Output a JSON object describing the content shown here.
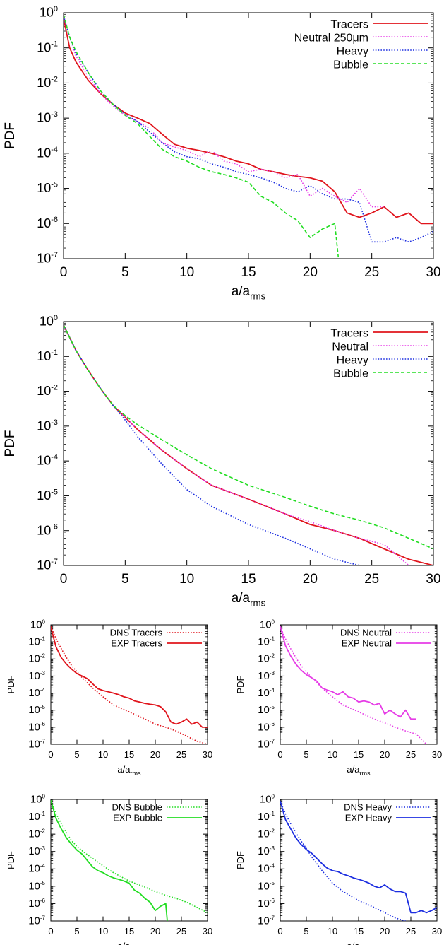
{
  "colors": {
    "tracers": "#e0141c",
    "neutral": "#e63ce6",
    "heavy": "#1c2ee0",
    "bubble": "#22dd22"
  },
  "chart_data": [
    {
      "type": "line",
      "y_scale": "log",
      "xlabel": "a/a",
      "xlabel_sub": "rms",
      "ylabel": "PDF",
      "xlim": [
        0,
        30
      ],
      "ylim": [
        1e-07,
        1
      ],
      "x_ticks": [
        "0",
        "5",
        "10",
        "15",
        "20",
        "25",
        "30"
      ],
      "y_ticks": [
        "10^0",
        "10^-1",
        "10^-2",
        "10^-3",
        "10^-4",
        "10^-5",
        "10^-6",
        "10^-7"
      ],
      "legend_position": "top-right",
      "series": [
        {
          "name": "Tracers",
          "color": "tracers",
          "style": "solid",
          "x": [
            0,
            0.5,
            1,
            2,
            3,
            4,
            5,
            6,
            7,
            8,
            9,
            10,
            11,
            12,
            13,
            14,
            15,
            16,
            17,
            18,
            19,
            20,
            21,
            22,
            23,
            24,
            25,
            26,
            27,
            28,
            29,
            30
          ],
          "y": [
            0.7,
            0.1,
            0.04,
            0.012,
            0.005,
            0.0025,
            0.0014,
            0.001,
            0.0007,
            0.00035,
            0.00018,
            0.00014,
            0.00012,
            0.0001,
            8e-05,
            6e-05,
            5e-05,
            3.5e-05,
            3e-05,
            2.5e-05,
            2.2e-05,
            2e-05,
            1.6e-05,
            8e-06,
            2e-06,
            1.5e-06,
            2e-06,
            3e-06,
            1.5e-06,
            2e-06,
            1e-06,
            1e-06
          ]
        },
        {
          "name": "Neutral 250μm",
          "color": "neutral",
          "style": "dotted",
          "x": [
            0,
            0.5,
            1,
            2,
            3,
            4,
            5,
            6,
            7,
            8,
            9,
            10,
            11,
            12,
            13,
            14,
            15,
            16,
            17,
            18,
            19,
            20,
            21,
            22,
            23,
            24,
            25,
            26
          ],
          "y": [
            0.8,
            0.2,
            0.06,
            0.015,
            0.005,
            0.0022,
            0.0012,
            0.0008,
            0.0005,
            0.0002,
            0.00015,
            0.00012,
            8e-05,
            0.00012,
            6e-05,
            5e-05,
            3e-05,
            3.5e-05,
            3e-05,
            2e-05,
            2.5e-05,
            6e-06,
            1e-05,
            6e-06,
            4e-06,
            1e-05,
            3e-06,
            3e-06
          ]
        },
        {
          "name": "Heavy",
          "color": "heavy",
          "style": "dotted",
          "x": [
            0,
            0.5,
            1,
            2,
            3,
            4,
            5,
            6,
            7,
            8,
            9,
            10,
            11,
            12,
            13,
            14,
            15,
            16,
            17,
            18,
            19,
            20,
            21,
            22,
            23,
            24,
            25,
            26,
            27,
            28,
            29,
            30
          ],
          "y": [
            0.8,
            0.2,
            0.07,
            0.02,
            0.006,
            0.0025,
            0.0013,
            0.0008,
            0.0004,
            0.0002,
            0.00011,
            8e-05,
            7e-05,
            5e-05,
            4e-05,
            3e-05,
            2.5e-05,
            2e-05,
            1.5e-05,
            1e-05,
            8e-06,
            1.2e-05,
            7e-06,
            5e-06,
            5e-06,
            4e-06,
            3e-07,
            3e-07,
            4e-07,
            3e-07,
            4e-07,
            6e-07
          ]
        },
        {
          "name": "Bubble",
          "color": "bubble",
          "style": "dashed",
          "x": [
            0,
            0.5,
            1,
            2,
            3,
            4,
            5,
            6,
            7,
            8,
            9,
            10,
            11,
            12,
            13,
            14,
            15,
            16,
            17,
            18,
            19,
            20,
            21,
            22,
            22.3
          ],
          "y": [
            0.9,
            0.2,
            0.08,
            0.02,
            0.006,
            0.0025,
            0.0012,
            0.0007,
            0.0003,
            0.00013,
            8e-05,
            6e-05,
            4e-05,
            3e-05,
            2.5e-05,
            2e-05,
            1.5e-05,
            6e-06,
            4e-06,
            2e-06,
            1.2e-06,
            4e-07,
            7e-07,
            1e-06,
            1e-07
          ]
        }
      ]
    },
    {
      "type": "line",
      "y_scale": "log",
      "xlabel": "a/a",
      "xlabel_sub": "rms",
      "ylabel": "PDF",
      "xlim": [
        0,
        30
      ],
      "ylim": [
        1e-07,
        1
      ],
      "x_ticks": [
        "0",
        "5",
        "10",
        "15",
        "20",
        "25",
        "30"
      ],
      "y_ticks": [
        "10^0",
        "10^-1",
        "10^-2",
        "10^-3",
        "10^-4",
        "10^-5",
        "10^-6",
        "10^-7"
      ],
      "legend_position": "top-right",
      "series": [
        {
          "name": "Tracers",
          "color": "tracers",
          "style": "solid",
          "x": [
            0,
            1,
            2,
            3,
            4,
            5,
            6,
            8,
            10,
            12,
            15,
            18,
            20,
            22,
            24,
            26,
            28,
            30
          ],
          "y": [
            0.8,
            0.15,
            0.04,
            0.012,
            0.004,
            0.0018,
            0.0008,
            0.0002,
            6e-05,
            2e-05,
            8e-06,
            3e-06,
            1.5e-06,
            1e-06,
            6e-07,
            3e-07,
            1.5e-07,
            1e-07
          ]
        },
        {
          "name": "Neutral",
          "color": "neutral",
          "style": "dotted",
          "x": [
            0,
            1,
            2,
            3,
            4,
            5,
            6,
            8,
            10,
            12,
            15,
            18,
            20,
            22,
            24,
            26,
            28
          ],
          "y": [
            0.8,
            0.15,
            0.04,
            0.012,
            0.004,
            0.0018,
            0.0008,
            0.0002,
            6e-05,
            2e-05,
            8e-06,
            3e-06,
            1.8e-06,
            1e-06,
            6e-07,
            4e-07,
            1e-07
          ]
        },
        {
          "name": "Heavy",
          "color": "heavy",
          "style": "dotted",
          "x": [
            0,
            1,
            2,
            3,
            4,
            5,
            6,
            8,
            10,
            12,
            15,
            18,
            20,
            22,
            24
          ],
          "y": [
            0.8,
            0.15,
            0.04,
            0.012,
            0.004,
            0.0015,
            0.0005,
            8e-05,
            1.5e-05,
            5e-06,
            1.5e-06,
            6e-07,
            3e-07,
            1.5e-07,
            1e-07
          ]
        },
        {
          "name": "Bubble",
          "color": "bubble",
          "style": "dashed",
          "x": [
            0,
            1,
            2,
            3,
            4,
            5,
            6,
            8,
            10,
            12,
            15,
            18,
            20,
            22,
            24,
            26,
            28,
            30
          ],
          "y": [
            0.8,
            0.15,
            0.04,
            0.012,
            0.004,
            0.002,
            0.0011,
            0.0004,
            0.00015,
            6e-05,
            2e-05,
            9e-06,
            5e-06,
            3e-06,
            2e-06,
            1.2e-06,
            6e-07,
            3e-07
          ]
        }
      ]
    },
    {
      "type": "line",
      "y_scale": "log",
      "xlabel": "a/a",
      "xlabel_sub": "rms",
      "ylabel": "PDF",
      "xlim": [
        0,
        30
      ],
      "ylim": [
        1e-07,
        1
      ],
      "x_ticks": [
        "0",
        "5",
        "10",
        "15",
        "20",
        "25",
        "30"
      ],
      "y_ticks": [
        "10^0",
        "10^-1",
        "10^-2",
        "10^-3",
        "10^-4",
        "10^-5",
        "10^-6",
        "10^-7"
      ],
      "legend_position": "top-right",
      "series": [
        {
          "name": "DNS Tracers",
          "color": "tracers",
          "style": "dotted",
          "x": [
            0,
            1,
            2,
            3,
            4,
            5,
            6,
            8,
            10,
            12,
            15,
            18,
            20,
            22,
            24,
            26,
            28,
            30
          ],
          "y": [
            0.8,
            0.15,
            0.04,
            0.012,
            0.004,
            0.0018,
            0.0008,
            0.0002,
            6e-05,
            2e-05,
            8e-06,
            3e-06,
            1.5e-06,
            1e-06,
            6e-07,
            3e-07,
            1.5e-07,
            1e-07
          ]
        },
        {
          "name": "EXP Tracers",
          "color": "tracers",
          "style": "solid",
          "x": [
            0,
            1,
            2,
            3,
            4,
            5,
            6,
            7,
            8,
            9,
            10,
            11,
            12,
            13,
            14,
            15,
            16,
            17,
            18,
            19,
            20,
            21,
            22,
            23,
            24,
            25,
            26,
            27,
            28,
            29,
            30
          ],
          "y": [
            0.7,
            0.05,
            0.012,
            0.005,
            0.0025,
            0.0014,
            0.001,
            0.0007,
            0.00035,
            0.00018,
            0.00014,
            0.00012,
            0.0001,
            8e-05,
            6e-05,
            5e-05,
            3.5e-05,
            3e-05,
            2.5e-05,
            2.2e-05,
            2e-05,
            1.6e-05,
            8e-06,
            2e-06,
            1.5e-06,
            2e-06,
            3e-06,
            1.5e-06,
            2e-06,
            1e-06,
            1e-06
          ]
        }
      ]
    },
    {
      "type": "line",
      "y_scale": "log",
      "xlabel": "a/a",
      "xlabel_sub": "rms",
      "ylabel": "PDF",
      "xlim": [
        0,
        30
      ],
      "ylim": [
        1e-07,
        1
      ],
      "x_ticks": [
        "0",
        "5",
        "10",
        "15",
        "20",
        "25",
        "30"
      ],
      "y_ticks": [
        "10^0",
        "10^-1",
        "10^-2",
        "10^-3",
        "10^-4",
        "10^-5",
        "10^-6",
        "10^-7"
      ],
      "legend_position": "top-right",
      "series": [
        {
          "name": "DNS Neutral",
          "color": "neutral",
          "style": "dotted",
          "x": [
            0,
            1,
            2,
            3,
            4,
            5,
            6,
            8,
            10,
            12,
            15,
            18,
            20,
            22,
            24,
            26,
            28
          ],
          "y": [
            0.8,
            0.15,
            0.04,
            0.012,
            0.004,
            0.0018,
            0.0008,
            0.0002,
            6e-05,
            2e-05,
            8e-06,
            3e-06,
            1.8e-06,
            1e-06,
            6e-07,
            4e-07,
            1e-07
          ]
        },
        {
          "name": "EXP Neutral",
          "color": "neutral",
          "style": "solid",
          "x": [
            0,
            1,
            2,
            3,
            4,
            5,
            6,
            7,
            8,
            9,
            10,
            11,
            12,
            13,
            14,
            15,
            16,
            17,
            18,
            19,
            20,
            21,
            22,
            23,
            24,
            25,
            26
          ],
          "y": [
            0.8,
            0.06,
            0.015,
            0.005,
            0.0022,
            0.0012,
            0.0008,
            0.0005,
            0.0002,
            0.00015,
            0.00012,
            8e-05,
            0.00012,
            6e-05,
            5e-05,
            3e-05,
            3.5e-05,
            3e-05,
            2e-05,
            2.5e-05,
            6e-06,
            1e-05,
            6e-06,
            4e-06,
            1e-05,
            3e-06,
            3e-06
          ]
        }
      ]
    },
    {
      "type": "line",
      "y_scale": "log",
      "xlabel": "a/a",
      "xlabel_sub": "rms",
      "ylabel": "PDF",
      "xlim": [
        0,
        30
      ],
      "ylim": [
        1e-07,
        1
      ],
      "x_ticks": [
        "0",
        "5",
        "10",
        "15",
        "20",
        "25",
        "30"
      ],
      "y_ticks": [
        "10^0",
        "10^-1",
        "10^-2",
        "10^-3",
        "10^-4",
        "10^-5",
        "10^-6",
        "10^-7"
      ],
      "legend_position": "top-right",
      "series": [
        {
          "name": "DNS Bubble",
          "color": "bubble",
          "style": "dotted",
          "x": [
            0,
            1,
            2,
            3,
            4,
            5,
            6,
            8,
            10,
            12,
            15,
            18,
            20,
            22,
            24,
            26,
            28,
            30
          ],
          "y": [
            0.8,
            0.15,
            0.04,
            0.012,
            0.004,
            0.002,
            0.0011,
            0.0004,
            0.00015,
            6e-05,
            2e-05,
            9e-06,
            5e-06,
            3e-06,
            2e-06,
            1.2e-06,
            6e-07,
            3e-07
          ]
        },
        {
          "name": "EXP Bubble",
          "color": "bubble",
          "style": "solid",
          "x": [
            0,
            1,
            2,
            3,
            4,
            5,
            6,
            7,
            8,
            9,
            10,
            11,
            12,
            13,
            14,
            15,
            16,
            17,
            18,
            19,
            20,
            21,
            22,
            22.3
          ],
          "y": [
            0.9,
            0.08,
            0.02,
            0.006,
            0.0025,
            0.0012,
            0.0007,
            0.0003,
            0.00013,
            8e-05,
            6e-05,
            4e-05,
            3e-05,
            2.5e-05,
            2e-05,
            1.5e-05,
            6e-06,
            4e-06,
            2e-06,
            1.2e-06,
            4e-07,
            7e-07,
            1e-06,
            1e-07
          ]
        }
      ]
    },
    {
      "type": "line",
      "y_scale": "log",
      "xlabel": "a/a",
      "xlabel_sub": "rms",
      "ylabel": "PDF",
      "xlim": [
        0,
        30
      ],
      "ylim": [
        1e-07,
        1
      ],
      "x_ticks": [
        "0",
        "5",
        "10",
        "15",
        "20",
        "25",
        "30"
      ],
      "y_ticks": [
        "10^0",
        "10^-1",
        "10^-2",
        "10^-3",
        "10^-4",
        "10^-5",
        "10^-6",
        "10^-7"
      ],
      "legend_position": "top-right",
      "series": [
        {
          "name": "DNS Heavy",
          "color": "heavy",
          "style": "dotted",
          "x": [
            0,
            1,
            2,
            3,
            4,
            5,
            6,
            8,
            10,
            12,
            15,
            18,
            20,
            22,
            24
          ],
          "y": [
            0.8,
            0.15,
            0.04,
            0.012,
            0.004,
            0.0015,
            0.0005,
            8e-05,
            1.5e-05,
            5e-06,
            1.5e-06,
            6e-07,
            3e-07,
            1.5e-07,
            1e-07
          ]
        },
        {
          "name": "EXP Heavy",
          "color": "heavy",
          "style": "solid",
          "x": [
            0,
            1,
            2,
            3,
            4,
            5,
            6,
            7,
            8,
            9,
            10,
            11,
            12,
            13,
            14,
            15,
            16,
            17,
            18,
            19,
            20,
            21,
            22,
            23,
            24,
            25,
            26,
            27,
            28,
            29,
            30
          ],
          "y": [
            0.8,
            0.07,
            0.02,
            0.006,
            0.0025,
            0.0013,
            0.0008,
            0.0004,
            0.0002,
            0.00011,
            8e-05,
            7e-05,
            5e-05,
            4e-05,
            3e-05,
            2.5e-05,
            2e-05,
            1.5e-05,
            1e-05,
            8e-06,
            1.2e-05,
            7e-06,
            5e-06,
            5e-06,
            4e-06,
            3e-07,
            3e-07,
            4e-07,
            3e-07,
            4e-07,
            6e-07
          ]
        }
      ]
    }
  ]
}
